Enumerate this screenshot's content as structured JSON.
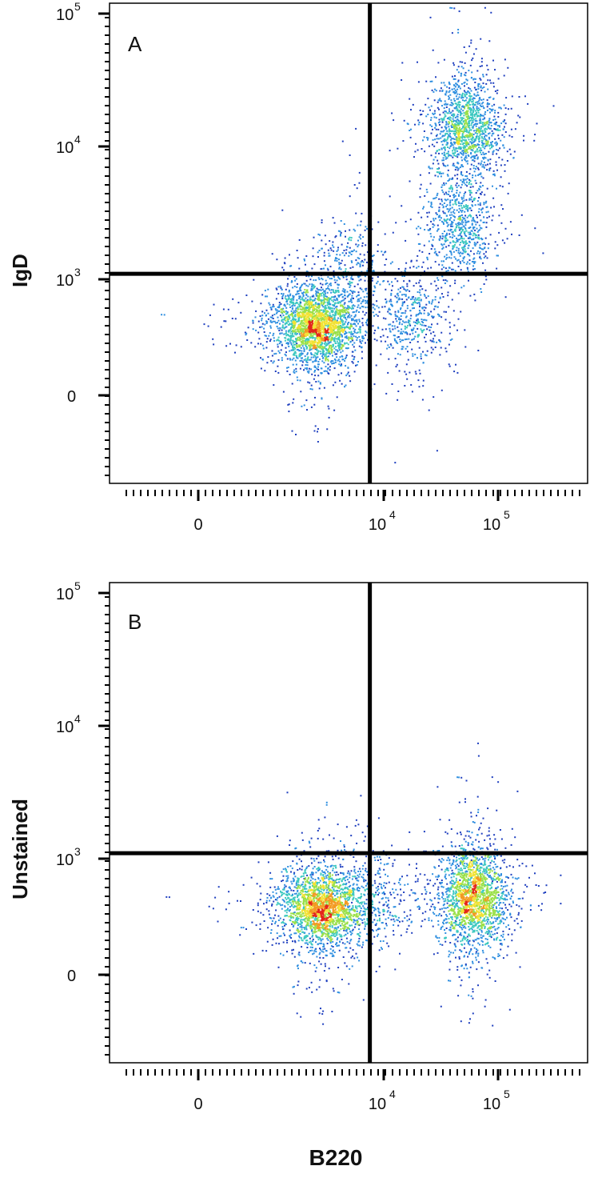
{
  "xlabel": "B220",
  "chart_data": [
    {
      "type": "scatter",
      "panel_label": "A",
      "ylabel": "IgD",
      "xlabel": "B220",
      "x_scale": "biexponential",
      "y_scale": "biexponential",
      "x_ticks": [
        {
          "value": 0,
          "label": "0",
          "sup": ""
        },
        {
          "value": 10000,
          "label": "10",
          "sup": "4"
        },
        {
          "value": 100000,
          "label": "10",
          "sup": "5"
        }
      ],
      "y_ticks": [
        {
          "value": 0,
          "label": "0",
          "sup": ""
        },
        {
          "value": 1000,
          "label": "10",
          "sup": "3"
        },
        {
          "value": 10000,
          "label": "10",
          "sup": "4"
        },
        {
          "value": 100000,
          "label": "10",
          "sup": "5"
        }
      ],
      "quadrant_gate": {
        "x": 6500,
        "y": 1100
      },
      "colormap": [
        "#1f3fbf",
        "#2f8fe0",
        "#3cc8c0",
        "#9be04a",
        "#f2e234",
        "#f39a22",
        "#e3261b"
      ],
      "populations": [
        {
          "center": [
            1200,
            200
          ],
          "count": 2600
        },
        {
          "center": [
            52000,
            14000
          ],
          "count": 1400
        },
        {
          "center": [
            45000,
            2500
          ],
          "count": 700
        },
        {
          "center": [
            18000,
            250
          ],
          "count": 420
        },
        {
          "center": [
            3500,
            1300
          ],
          "count": 260
        }
      ]
    },
    {
      "type": "scatter",
      "panel_label": "B",
      "ylabel": "Unstained",
      "xlabel": "B220",
      "x_scale": "biexponential",
      "y_scale": "biexponential",
      "x_ticks": [
        {
          "value": 0,
          "label": "0",
          "sup": ""
        },
        {
          "value": 10000,
          "label": "10",
          "sup": "4"
        },
        {
          "value": 100000,
          "label": "10",
          "sup": "5"
        }
      ],
      "y_ticks": [
        {
          "value": 0,
          "label": "0",
          "sup": ""
        },
        {
          "value": 1000,
          "label": "10",
          "sup": "3"
        },
        {
          "value": 10000,
          "label": "10",
          "sup": "4"
        },
        {
          "value": 100000,
          "label": "10",
          "sup": "5"
        }
      ],
      "quadrant_gate": {
        "x": 6500,
        "y": 1100
      },
      "colormap": [
        "#1f3fbf",
        "#2f8fe0",
        "#3cc8c0",
        "#9be04a",
        "#f2e234",
        "#f39a22",
        "#e3261b"
      ],
      "populations": [
        {
          "center": [
            1400,
            180
          ],
          "count": 2200
        },
        {
          "center": [
            60000,
            260
          ],
          "count": 2000
        },
        {
          "center": [
            7000,
            200
          ],
          "count": 260
        }
      ]
    }
  ]
}
